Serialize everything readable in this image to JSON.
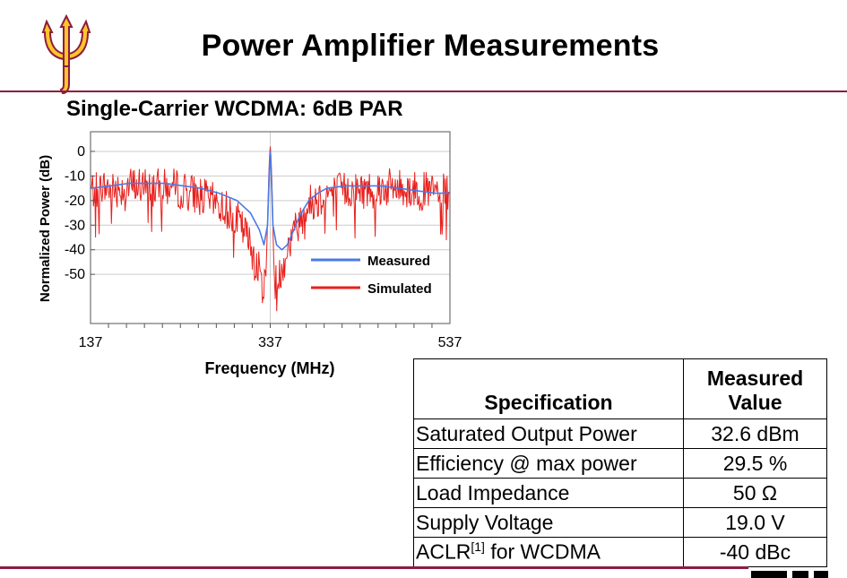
{
  "slide": {
    "title": "Power Amplifier Measurements",
    "subtitle": "Single-Carrier WCDMA: 6dB PAR"
  },
  "colors": {
    "accent": "#8c1d40",
    "logo_gold": "#ffc627",
    "measured": "#4a7be8",
    "simulated": "#e8201c"
  },
  "chart_data": {
    "type": "line",
    "xlabel": "Frequency (MHz)",
    "ylabel": "Normalized Power (dB)",
    "xlim": [
      137,
      537
    ],
    "ylim": [
      -70,
      8
    ],
    "x_ticks": [
      "137",
      "337",
      "537"
    ],
    "y_ticks": [
      "0",
      "-10",
      "-20",
      "-30",
      "-40",
      "-50"
    ],
    "legend_position": "bottom-right",
    "grid": true,
    "series": [
      {
        "name": "Measured",
        "color": "#4a7be8",
        "x": [
          137,
          160,
          180,
          200,
          220,
          240,
          260,
          280,
          300,
          315,
          325,
          330,
          334,
          336,
          337,
          338,
          340,
          344,
          350,
          356,
          362,
          370,
          380,
          390,
          400,
          420,
          440,
          460,
          480,
          500,
          520,
          537
        ],
        "y": [
          -15,
          -14,
          -13,
          -13,
          -13,
          -14,
          -15,
          -17,
          -20,
          -25,
          -32,
          -38,
          -30,
          -8,
          0,
          -8,
          -30,
          -38,
          -40,
          -38,
          -33,
          -26,
          -20,
          -17,
          -15,
          -14,
          -14,
          -14,
          -15,
          -16,
          -17,
          -17
        ]
      },
      {
        "name": "Simulated",
        "color": "#e8201c",
        "x": [
          137,
          150,
          170,
          190,
          210,
          230,
          250,
          270,
          290,
          300,
          310,
          320,
          326,
          330,
          333,
          335,
          336,
          337,
          338,
          339,
          341,
          345,
          350,
          358,
          366,
          374,
          382,
          392,
          402,
          420,
          440,
          460,
          480,
          500,
          520,
          537
        ],
        "y": [
          -15,
          -14,
          -14,
          -13,
          -14,
          -14,
          -16,
          -19,
          -23,
          -27,
          -33,
          -42,
          -50,
          -56,
          -44,
          -14,
          -3,
          2,
          -3,
          -14,
          -42,
          -54,
          -46,
          -37,
          -30,
          -24,
          -20,
          -18,
          -16,
          -15,
          -15,
          -14,
          -14,
          -15,
          -16,
          -16
        ]
      }
    ]
  },
  "table": {
    "header": {
      "spec": "Specification",
      "value_line1": "Measured",
      "value_line2": "Value"
    },
    "rows": [
      {
        "name": "Saturated Output Power",
        "value": "32.6 dBm"
      },
      {
        "name": "Efficiency @ max power",
        "value": "29.5 %"
      },
      {
        "name": "Load Impedance",
        "value": "50 Ω"
      },
      {
        "name": "Supply Voltage",
        "value": "19.0 V"
      },
      {
        "name_pre": "ACLR",
        "name_sup": "[1]",
        "name_post": " for WCDMA",
        "value": "-40 dBc"
      }
    ]
  }
}
